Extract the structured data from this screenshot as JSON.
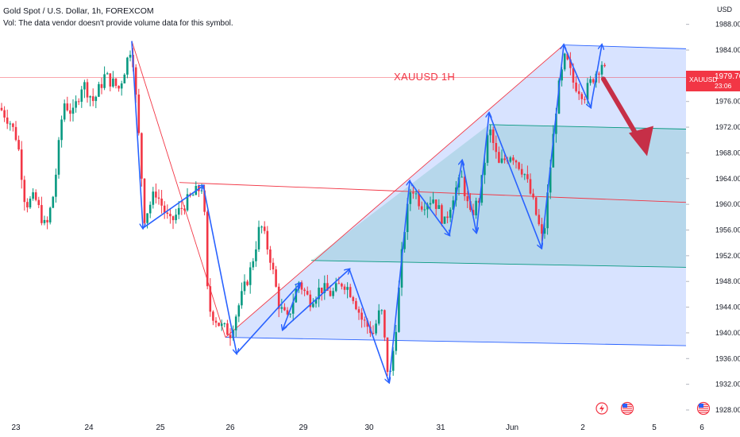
{
  "header": {
    "title": "Gold Spot / U.S. Dollar, 1h, FOREXCOM",
    "volume_note": "Vol: The data vendor doesn't provide volume data for this symbol."
  },
  "currency": "USD",
  "price_tag": {
    "symbol": "XAUUSD",
    "price": "1979.76",
    "countdown": "23:06"
  },
  "annotation": "XAUUSD 1H",
  "colors": {
    "up": "#089981",
    "down": "#f23645",
    "arrow": "#2962ff",
    "fib_blue": "#2962ff",
    "fib_green": "#089981",
    "trend": "#f23645"
  },
  "icons": [
    "lightning-icon",
    "us-flag-icon"
  ],
  "chart_data": {
    "type": "candlestick",
    "title": "Gold Spot / U.S. Dollar, 1h, FOREXCOM",
    "ylim": [
      1927,
      1990
    ],
    "ylabel": "USD",
    "y_ticks": [
      "1928.00",
      "1932.00",
      "1936.00",
      "1940.00",
      "1944.00",
      "1948.00",
      "1952.00",
      "1956.00",
      "1960.00",
      "1964.00",
      "1968.00",
      "1972.00",
      "1976.00",
      "1980.00",
      "1984.00",
      "1988.00"
    ],
    "x_ticks": [
      "23",
      "24",
      "25",
      "26",
      "29",
      "30",
      "31",
      "Jun",
      "2",
      "5",
      "6"
    ],
    "last_price": 1979.76,
    "pivots": [
      {
        "date": "23",
        "price": 1975
      },
      {
        "date": "24",
        "price": 1985
      },
      {
        "date": "24",
        "price": 1957
      },
      {
        "date": "25",
        "price": 1963
      },
      {
        "date": "26",
        "price": 1937
      },
      {
        "date": "29",
        "price": 1948
      },
      {
        "date": "29",
        "price": 1950
      },
      {
        "date": "30",
        "price": 1932
      },
      {
        "date": "30",
        "price": 1963
      },
      {
        "date": "31",
        "price": 1955
      },
      {
        "date": "31",
        "price": 1966
      },
      {
        "date": "31",
        "price": 1955
      },
      {
        "date": "Jun",
        "price": 1974
      },
      {
        "date": "Jun",
        "price": 1953
      },
      {
        "date": "Jun",
        "price": 1984
      },
      {
        "date": "2",
        "price": 1975
      },
      {
        "date": "2",
        "price": 1984
      },
      {
        "date": "2",
        "price": 1979.76
      }
    ],
    "horizontal_levels": [
      1979.76,
      1964.2,
      1951.5,
      1942.2,
      1984.8
    ]
  }
}
